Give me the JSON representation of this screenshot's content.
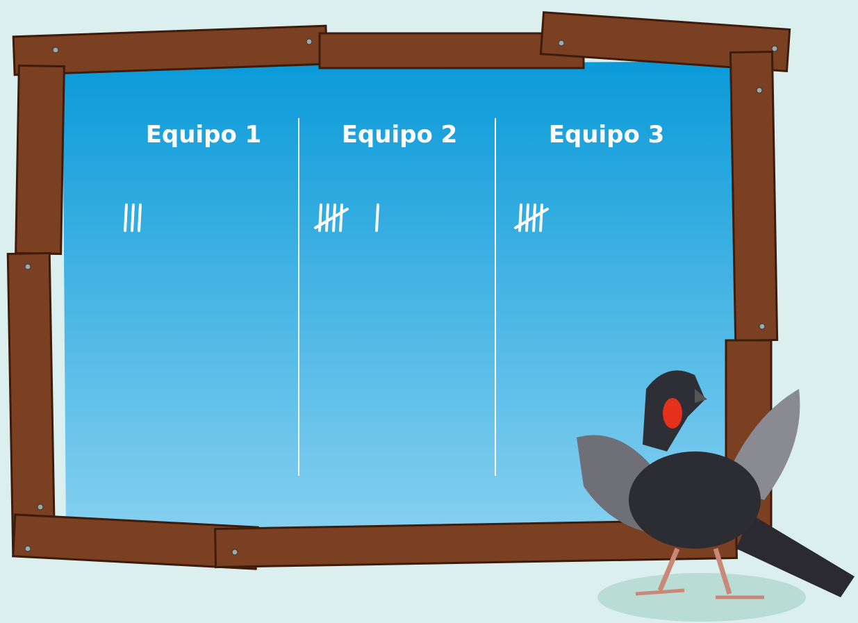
{
  "columns": [
    {
      "header": "Equipo 1",
      "tally": 3
    },
    {
      "header": "Equipo 2",
      "tally": 6
    },
    {
      "header": "Equipo 3",
      "tally": 5
    }
  ]
}
